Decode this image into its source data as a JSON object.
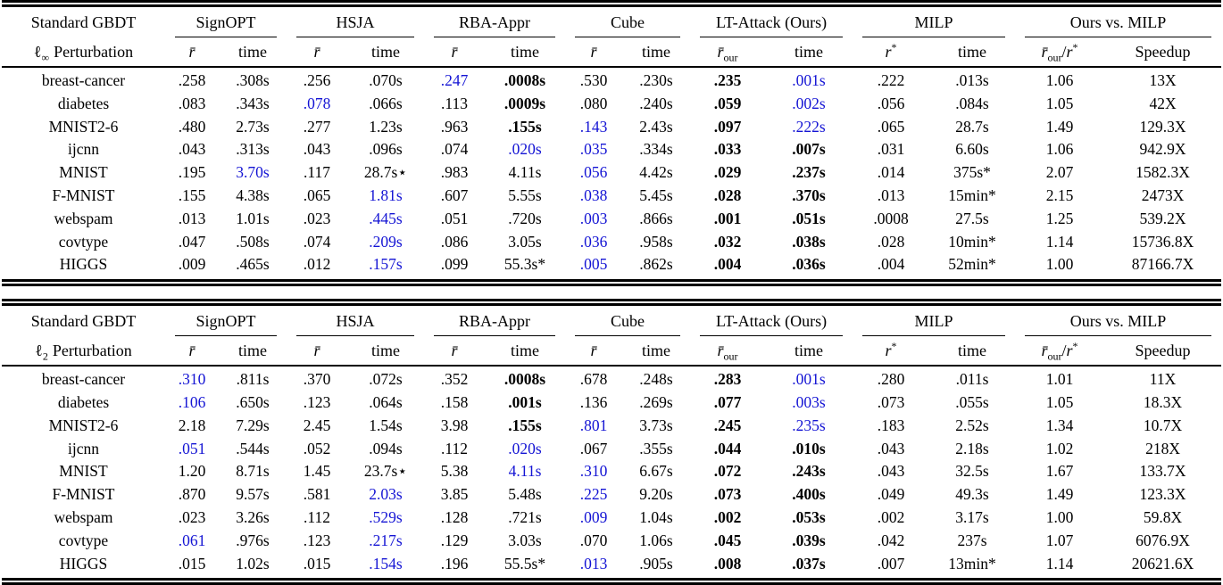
{
  "colors": {
    "blue": "#1414d4",
    "text": "#000000",
    "background": "#ffffff"
  },
  "columns": {
    "rbar": "r̄",
    "time": "time",
    "our": "our",
    "r": "r",
    "star": "*",
    "slash": "/",
    "speedup": "Speedup"
  },
  "groups": [
    "SignOPT",
    "HSJA",
    "RBA-Appr",
    "Cube",
    "LT-Attack (Ours)",
    "MILP",
    "Ours vs. MILP"
  ],
  "tables": [
    {
      "id": "linf",
      "corner_title": "Standard GBDT",
      "norm_symbol": "ℓ",
      "norm_sub": "∞",
      "corner_label": "Perturbation",
      "rows": [
        {
          "name": "breast-cancer",
          "cells": [
            [
              ".258",
              ""
            ],
            [
              ".308s",
              ""
            ],
            [
              ".256",
              ""
            ],
            [
              ".070s",
              ""
            ],
            [
              ".247",
              "b"
            ],
            [
              ".0008s",
              "w"
            ],
            [
              ".530",
              ""
            ],
            [
              ".230s",
              ""
            ],
            [
              ".235",
              "w"
            ],
            [
              ".001s",
              "b"
            ],
            [
              ".222",
              ""
            ],
            [
              ".013s",
              ""
            ],
            [
              "1.06",
              ""
            ],
            [
              "13X",
              ""
            ]
          ]
        },
        {
          "name": "diabetes",
          "cells": [
            [
              ".083",
              ""
            ],
            [
              ".343s",
              ""
            ],
            [
              ".078",
              "b"
            ],
            [
              ".066s",
              ""
            ],
            [
              ".113",
              ""
            ],
            [
              ".0009s",
              "w"
            ],
            [
              ".080",
              ""
            ],
            [
              ".240s",
              ""
            ],
            [
              ".059",
              "w"
            ],
            [
              ".002s",
              "b"
            ],
            [
              ".056",
              ""
            ],
            [
              ".084s",
              ""
            ],
            [
              "1.05",
              ""
            ],
            [
              "42X",
              ""
            ]
          ]
        },
        {
          "name": "MNIST2-6",
          "cells": [
            [
              ".480",
              ""
            ],
            [
              "2.73s",
              ""
            ],
            [
              ".277",
              ""
            ],
            [
              "1.23s",
              ""
            ],
            [
              ".963",
              ""
            ],
            [
              ".155s",
              "w"
            ],
            [
              ".143",
              "b"
            ],
            [
              "2.43s",
              ""
            ],
            [
              ".097",
              "w"
            ],
            [
              ".222s",
              "b"
            ],
            [
              ".065",
              ""
            ],
            [
              "28.7s",
              ""
            ],
            [
              "1.49",
              ""
            ],
            [
              "129.3X",
              ""
            ]
          ]
        },
        {
          "name": "ijcnn",
          "cells": [
            [
              ".043",
              ""
            ],
            [
              ".313s",
              ""
            ],
            [
              ".043",
              ""
            ],
            [
              ".096s",
              ""
            ],
            [
              ".074",
              ""
            ],
            [
              ".020s",
              "b"
            ],
            [
              ".035",
              "b"
            ],
            [
              ".334s",
              ""
            ],
            [
              ".033",
              "w"
            ],
            [
              ".007s",
              "w"
            ],
            [
              ".031",
              ""
            ],
            [
              "6.60s",
              ""
            ],
            [
              "1.06",
              ""
            ],
            [
              "942.9X",
              ""
            ]
          ]
        },
        {
          "name": "MNIST",
          "cells": [
            [
              ".195",
              ""
            ],
            [
              "3.70s",
              "b"
            ],
            [
              ".117",
              ""
            ],
            [
              "28.7s⋆",
              ""
            ],
            [
              ".983",
              ""
            ],
            [
              "4.11s",
              ""
            ],
            [
              ".056",
              "b"
            ],
            [
              "4.42s",
              ""
            ],
            [
              ".029",
              "w"
            ],
            [
              ".237s",
              "w"
            ],
            [
              ".014",
              ""
            ],
            [
              "375s*",
              ""
            ],
            [
              "2.07",
              ""
            ],
            [
              "1582.3X",
              ""
            ]
          ]
        },
        {
          "name": "F-MNIST",
          "cells": [
            [
              ".155",
              ""
            ],
            [
              "4.38s",
              ""
            ],
            [
              ".065",
              ""
            ],
            [
              "1.81s",
              "b"
            ],
            [
              ".607",
              ""
            ],
            [
              "5.55s",
              ""
            ],
            [
              ".038",
              "b"
            ],
            [
              "5.45s",
              ""
            ],
            [
              ".028",
              "w"
            ],
            [
              ".370s",
              "w"
            ],
            [
              ".013",
              ""
            ],
            [
              "15min*",
              ""
            ],
            [
              "2.15",
              ""
            ],
            [
              "2473X",
              ""
            ]
          ]
        },
        {
          "name": "webspam",
          "cells": [
            [
              ".013",
              ""
            ],
            [
              "1.01s",
              ""
            ],
            [
              ".023",
              ""
            ],
            [
              ".445s",
              "b"
            ],
            [
              ".051",
              ""
            ],
            [
              ".720s",
              ""
            ],
            [
              ".003",
              "b"
            ],
            [
              ".866s",
              ""
            ],
            [
              ".001",
              "w"
            ],
            [
              ".051s",
              "w"
            ],
            [
              ".0008",
              ""
            ],
            [
              "27.5s",
              ""
            ],
            [
              "1.25",
              ""
            ],
            [
              "539.2X",
              ""
            ]
          ]
        },
        {
          "name": "covtype",
          "cells": [
            [
              ".047",
              ""
            ],
            [
              ".508s",
              ""
            ],
            [
              ".074",
              ""
            ],
            [
              ".209s",
              "b"
            ],
            [
              ".086",
              ""
            ],
            [
              "3.05s",
              ""
            ],
            [
              ".036",
              "b"
            ],
            [
              ".958s",
              ""
            ],
            [
              ".032",
              "w"
            ],
            [
              ".038s",
              "w"
            ],
            [
              ".028",
              ""
            ],
            [
              "10min*",
              ""
            ],
            [
              "1.14",
              ""
            ],
            [
              "15736.8X",
              ""
            ]
          ]
        },
        {
          "name": "HIGGS",
          "cells": [
            [
              ".009",
              ""
            ],
            [
              ".465s",
              ""
            ],
            [
              ".012",
              ""
            ],
            [
              ".157s",
              "b"
            ],
            [
              ".099",
              ""
            ],
            [
              "55.3s*",
              ""
            ],
            [
              ".005",
              "b"
            ],
            [
              ".862s",
              ""
            ],
            [
              ".004",
              "w"
            ],
            [
              ".036s",
              "w"
            ],
            [
              ".004",
              ""
            ],
            [
              "52min*",
              ""
            ],
            [
              "1.00",
              ""
            ],
            [
              "87166.7X",
              ""
            ]
          ]
        }
      ]
    },
    {
      "id": "l2",
      "corner_title": "Standard GBDT",
      "norm_symbol": "ℓ",
      "norm_sub": "2",
      "corner_label": "Perturbation",
      "rows": [
        {
          "name": "breast-cancer",
          "cells": [
            [
              ".310",
              "b"
            ],
            [
              ".811s",
              ""
            ],
            [
              ".370",
              ""
            ],
            [
              ".072s",
              ""
            ],
            [
              ".352",
              ""
            ],
            [
              ".0008s",
              "w"
            ],
            [
              ".678",
              ""
            ],
            [
              ".248s",
              ""
            ],
            [
              ".283",
              "w"
            ],
            [
              ".001s",
              "b"
            ],
            [
              ".280",
              ""
            ],
            [
              ".011s",
              ""
            ],
            [
              "1.01",
              ""
            ],
            [
              "11X",
              ""
            ]
          ]
        },
        {
          "name": "diabetes",
          "cells": [
            [
              ".106",
              "b"
            ],
            [
              ".650s",
              ""
            ],
            [
              ".123",
              ""
            ],
            [
              ".064s",
              ""
            ],
            [
              ".158",
              ""
            ],
            [
              ".001s",
              "w"
            ],
            [
              ".136",
              ""
            ],
            [
              ".269s",
              ""
            ],
            [
              ".077",
              "w"
            ],
            [
              ".003s",
              "b"
            ],
            [
              ".073",
              ""
            ],
            [
              ".055s",
              ""
            ],
            [
              "1.05",
              ""
            ],
            [
              "18.3X",
              ""
            ]
          ]
        },
        {
          "name": "MNIST2-6",
          "cells": [
            [
              "2.18",
              ""
            ],
            [
              "7.29s",
              ""
            ],
            [
              "2.45",
              ""
            ],
            [
              "1.54s",
              ""
            ],
            [
              "3.98",
              ""
            ],
            [
              ".155s",
              "w"
            ],
            [
              ".801",
              "b"
            ],
            [
              "3.73s",
              ""
            ],
            [
              ".245",
              "w"
            ],
            [
              ".235s",
              "b"
            ],
            [
              ".183",
              ""
            ],
            [
              "2.52s",
              ""
            ],
            [
              "1.34",
              ""
            ],
            [
              "10.7X",
              ""
            ]
          ]
        },
        {
          "name": "ijcnn",
          "cells": [
            [
              ".051",
              "b"
            ],
            [
              ".544s",
              ""
            ],
            [
              ".052",
              ""
            ],
            [
              ".094s",
              ""
            ],
            [
              ".112",
              ""
            ],
            [
              ".020s",
              "b"
            ],
            [
              ".067",
              ""
            ],
            [
              ".355s",
              ""
            ],
            [
              ".044",
              "w"
            ],
            [
              ".010s",
              "w"
            ],
            [
              ".043",
              ""
            ],
            [
              "2.18s",
              ""
            ],
            [
              "1.02",
              ""
            ],
            [
              "218X",
              ""
            ]
          ]
        },
        {
          "name": "MNIST",
          "cells": [
            [
              "1.20",
              ""
            ],
            [
              "8.71s",
              ""
            ],
            [
              "1.45",
              ""
            ],
            [
              "23.7s⋆",
              ""
            ],
            [
              "5.38",
              ""
            ],
            [
              "4.11s",
              "b"
            ],
            [
              ".310",
              "b"
            ],
            [
              "6.67s",
              ""
            ],
            [
              ".072",
              "w"
            ],
            [
              ".243s",
              "w"
            ],
            [
              ".043",
              ""
            ],
            [
              "32.5s",
              ""
            ],
            [
              "1.67",
              ""
            ],
            [
              "133.7X",
              ""
            ]
          ]
        },
        {
          "name": "F-MNIST",
          "cells": [
            [
              ".870",
              ""
            ],
            [
              "9.57s",
              ""
            ],
            [
              ".581",
              ""
            ],
            [
              "2.03s",
              "b"
            ],
            [
              "3.85",
              ""
            ],
            [
              "5.48s",
              ""
            ],
            [
              ".225",
              "b"
            ],
            [
              "9.20s",
              ""
            ],
            [
              ".073",
              "w"
            ],
            [
              ".400s",
              "w"
            ],
            [
              ".049",
              ""
            ],
            [
              "49.3s",
              ""
            ],
            [
              "1.49",
              ""
            ],
            [
              "123.3X",
              ""
            ]
          ]
        },
        {
          "name": "webspam",
          "cells": [
            [
              ".023",
              ""
            ],
            [
              "3.26s",
              ""
            ],
            [
              ".112",
              ""
            ],
            [
              ".529s",
              "b"
            ],
            [
              ".128",
              ""
            ],
            [
              ".721s",
              ""
            ],
            [
              ".009",
              "b"
            ],
            [
              "1.04s",
              ""
            ],
            [
              ".002",
              "w"
            ],
            [
              ".053s",
              "w"
            ],
            [
              ".002",
              ""
            ],
            [
              "3.17s",
              ""
            ],
            [
              "1.00",
              ""
            ],
            [
              "59.8X",
              ""
            ]
          ]
        },
        {
          "name": "covtype",
          "cells": [
            [
              ".061",
              "b"
            ],
            [
              ".976s",
              ""
            ],
            [
              ".123",
              ""
            ],
            [
              ".217s",
              "b"
            ],
            [
              ".129",
              ""
            ],
            [
              "3.03s",
              ""
            ],
            [
              ".070",
              ""
            ],
            [
              "1.06s",
              ""
            ],
            [
              ".045",
              "w"
            ],
            [
              ".039s",
              "w"
            ],
            [
              ".042",
              ""
            ],
            [
              "237s",
              ""
            ],
            [
              "1.07",
              ""
            ],
            [
              "6076.9X",
              ""
            ]
          ]
        },
        {
          "name": "HIGGS",
          "cells": [
            [
              ".015",
              ""
            ],
            [
              "1.02s",
              ""
            ],
            [
              ".015",
              ""
            ],
            [
              ".154s",
              "b"
            ],
            [
              ".196",
              ""
            ],
            [
              "55.5s*",
              ""
            ],
            [
              ".013",
              "b"
            ],
            [
              ".905s",
              ""
            ],
            [
              ".008",
              "w"
            ],
            [
              ".037s",
              "w"
            ],
            [
              ".007",
              ""
            ],
            [
              "13min*",
              ""
            ],
            [
              "1.14",
              ""
            ],
            [
              "20621.6X",
              ""
            ]
          ]
        }
      ]
    }
  ]
}
